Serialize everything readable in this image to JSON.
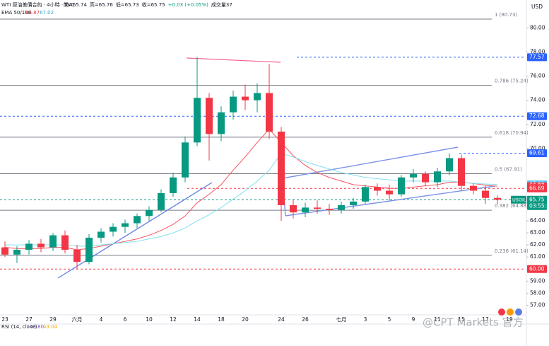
{
  "chart_data": {
    "type": "candlestick",
    "title": "WTI 原油差價合約 · 4小時 · TVC",
    "ohlc_header": [
      "開=65.74",
      "高=65.76",
      "低=65.73",
      "收=65.75",
      "+0.03 (+0.05%)",
      "成交量37"
    ],
    "currency": "USD",
    "ema_legend": {
      "label": "EMA 50/100",
      "values": [
        66.87,
        67.02
      ]
    },
    "rsi_legend": {
      "label": "RSI (14, close)",
      "values": [
        40.8,
        43.04
      ],
      "value_labels": [
        "40.80",
        "43.04"
      ]
    },
    "watermark": "@CPT Markets 官方",
    "symbol_tag": "USOIL",
    "countdown": "03:55:33",
    "up_color": "#089981",
    "down_color": "#f23645",
    "categories": [
      "23",
      null,
      "27",
      null,
      "29",
      null,
      "六月",
      null,
      "4",
      null,
      "6",
      null,
      "10",
      null,
      "12",
      null,
      "14",
      null,
      "18",
      null,
      "20",
      null,
      null,
      "24",
      null,
      "26",
      null,
      null,
      "七月",
      null,
      "3",
      null,
      "5",
      null,
      "9",
      null,
      "11",
      null,
      "15",
      null,
      "17",
      null,
      "19"
    ],
    "open": [
      61.8,
      61.2,
      61.6,
      62.1,
      61.8,
      62.8,
      61.6,
      60.6,
      62.6,
      63.1,
      63.5,
      63.8,
      64.4,
      64.9,
      66.3,
      67.6,
      70.5,
      74.2,
      71.2,
      73.0,
      74.3,
      74.0,
      74.6,
      71.4,
      65.3,
      64.7,
      65.1,
      65.0,
      64.9,
      65.3,
      65.6,
      66.8,
      66.5,
      66.2,
      67.6,
      67.9,
      67.2,
      68.1,
      69.2,
      66.9,
      66.5,
      65.9,
      null
    ],
    "high": [
      62.3,
      61.9,
      62.4,
      62.5,
      63.0,
      63.2,
      62.0,
      62.9,
      63.4,
      63.8,
      64.1,
      64.6,
      65.2,
      66.6,
      68.0,
      71.0,
      77.6,
      74.6,
      73.5,
      74.8,
      75.3,
      75.4,
      77.0,
      71.8,
      65.8,
      65.5,
      65.7,
      65.4,
      65.6,
      65.9,
      67.0,
      67.1,
      67.0,
      67.8,
      68.3,
      68.1,
      68.4,
      69.6,
      69.5,
      67.1,
      66.9,
      66.1,
      null
    ],
    "low": [
      61.0,
      60.5,
      61.2,
      61.4,
      61.5,
      61.3,
      60.0,
      60.4,
      62.2,
      62.7,
      63.0,
      63.4,
      64.0,
      64.7,
      66.0,
      67.2,
      70.2,
      69.0,
      70.6,
      72.4,
      73.2,
      73.0,
      70.8,
      64.0,
      64.2,
      64.3,
      64.6,
      64.5,
      64.6,
      65.0,
      65.4,
      66.1,
      65.7,
      66.0,
      67.2,
      66.9,
      66.8,
      67.8,
      66.5,
      66.2,
      65.4,
      65.4,
      null
    ],
    "close": [
      61.2,
      61.6,
      62.1,
      61.8,
      62.8,
      61.6,
      60.6,
      62.6,
      63.1,
      63.5,
      63.8,
      64.4,
      64.9,
      66.3,
      67.6,
      70.5,
      74.2,
      71.2,
      73.0,
      74.3,
      74.0,
      74.6,
      71.4,
      65.3,
      64.7,
      65.1,
      65.0,
      64.9,
      65.3,
      65.6,
      66.8,
      66.5,
      66.2,
      67.6,
      67.9,
      67.2,
      68.1,
      69.2,
      66.9,
      66.5,
      65.9,
      65.75,
      null
    ],
    "series": [
      {
        "name": "EMA 50",
        "color": "#f7525f",
        "values": [
          61.8,
          61.7,
          61.7,
          61.7,
          61.8,
          61.8,
          61.6,
          61.7,
          61.9,
          62.1,
          62.3,
          62.5,
          62.8,
          63.2,
          63.7,
          64.4,
          65.5,
          66.2,
          67.0,
          68.2,
          69.3,
          70.5,
          71.6,
          70.5,
          69.4,
          68.6,
          68.0,
          67.6,
          67.3,
          67.0,
          66.9,
          66.8,
          66.7,
          66.7,
          66.8,
          66.9,
          67.0,
          67.2,
          67.2,
          67.1,
          66.95,
          66.87,
          null
        ]
      },
      {
        "name": "EMA 100",
        "color": "#7fe0ec",
        "values": [
          62.0,
          62.0,
          62.0,
          62.0,
          62.0,
          62.0,
          61.9,
          61.9,
          62.0,
          62.1,
          62.2,
          62.3,
          62.5,
          62.7,
          63.0,
          63.4,
          64.0,
          64.5,
          65.1,
          65.8,
          66.5,
          67.3,
          68.2,
          69.6,
          69.3,
          68.9,
          68.6,
          68.3,
          68.0,
          67.8,
          67.6,
          67.5,
          67.4,
          67.3,
          67.3,
          67.3,
          67.3,
          67.3,
          67.2,
          67.1,
          67.05,
          67.02,
          null
        ]
      }
    ],
    "ylim": [
      56.2,
      82.2
    ],
    "yticks": [
      {
        "value": 80,
        "label": "80.00"
      },
      {
        "value": 78,
        "label": "78.00"
      },
      {
        "value": 76,
        "label": "76.00"
      },
      {
        "value": 74,
        "label": "74.00"
      },
      {
        "value": 72,
        "label": "72.00"
      },
      {
        "value": 70,
        "label": "70.00"
      },
      {
        "value": 64,
        "label": "64.00"
      },
      {
        "value": 63,
        "label": "63.00"
      },
      {
        "value": 62,
        "label": "62.00"
      },
      {
        "value": 61,
        "label": "61.00"
      },
      {
        "value": 59,
        "label": "59.00"
      },
      {
        "value": 58,
        "label": "58.00"
      },
      {
        "value": 57,
        "label": "57.00"
      }
    ],
    "fib_levels": [
      {
        "label": "1 (80.73)",
        "value": 80.73
      },
      {
        "label": "0.786 (75.24)",
        "value": 75.24
      },
      {
        "label": "0.618 (70.94)",
        "value": 70.94
      },
      {
        "label": "0.5 (67.91)",
        "value": 67.91
      },
      {
        "label": "0.382 (64.88)",
        "value": 64.88
      },
      {
        "label": "0.236 (61.14)",
        "value": 61.14
      }
    ],
    "price_tags": [
      {
        "value": 77.57,
        "color": "#2962ff"
      },
      {
        "value": 72.68,
        "color": "#2962ff"
      },
      {
        "value": 69.61,
        "color": "#2962ff"
      },
      {
        "value": 67.02,
        "color": "#4fc3f7"
      },
      {
        "value": 66.87,
        "color": "#f23645"
      },
      {
        "value": 66.69,
        "color": "#f23645"
      },
      {
        "value": 65.75,
        "color": "#089981"
      },
      {
        "value": 60.0,
        "label": "60.00",
        "color": "#f23645"
      }
    ]
  }
}
